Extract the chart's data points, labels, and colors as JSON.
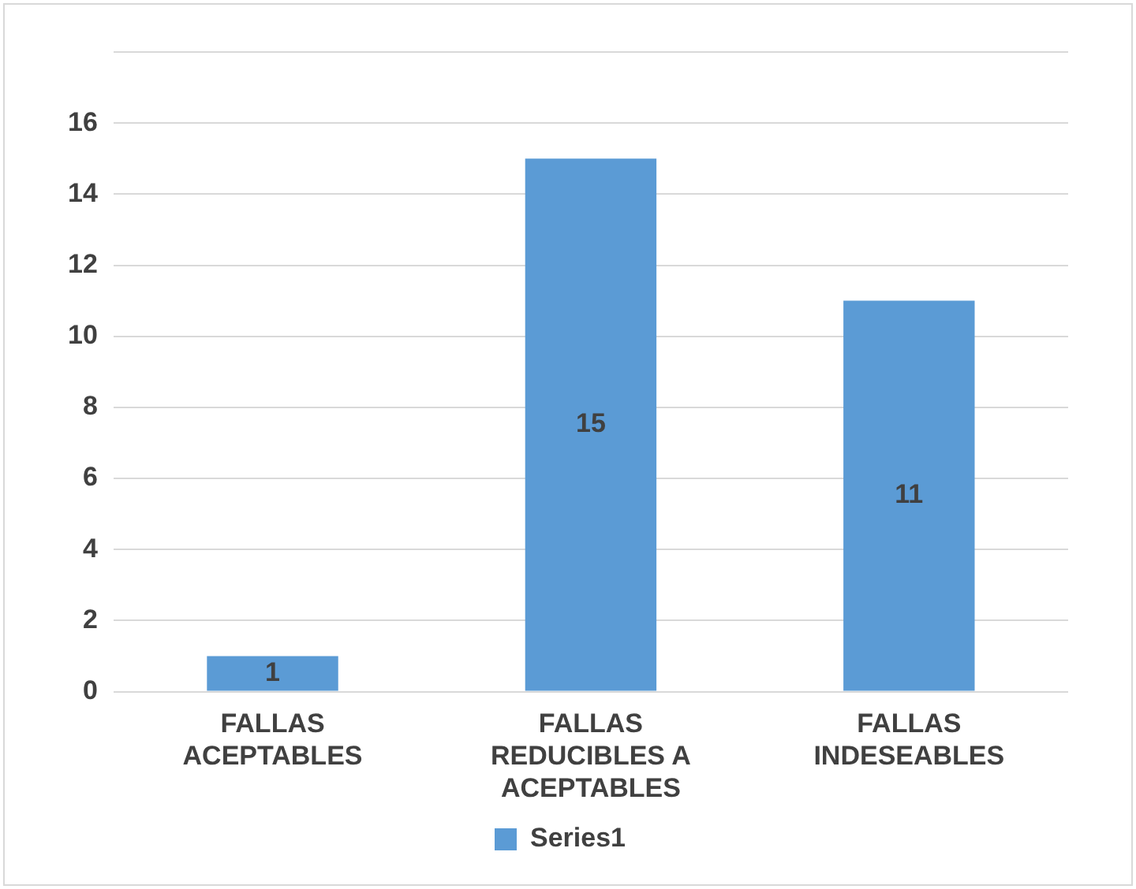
{
  "chart_data": {
    "type": "bar",
    "categories": [
      "FALLAS ACEPTABLES",
      "FALLAS REDUCIBLES A ACEPTABLES",
      "FALLAS INDESEABLES"
    ],
    "series": [
      {
        "name": "Series1",
        "color": "#5b9bd5",
        "values": [
          1,
          15,
          11
        ]
      }
    ],
    "ylim": [
      0,
      18
    ],
    "yticks": [
      0,
      2,
      4,
      6,
      8,
      10,
      12,
      14,
      16,
      {
        "value": 18,
        "label": null
      }
    ],
    "grid": "y",
    "legend": "bottom",
    "data_labels": true
  }
}
